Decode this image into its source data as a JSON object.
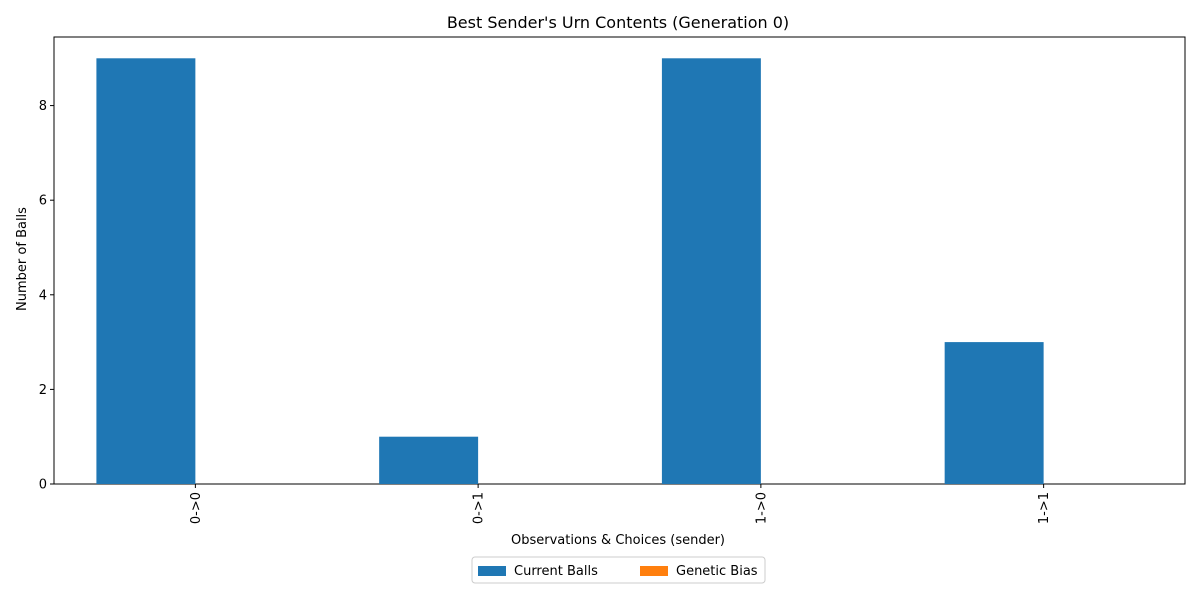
{
  "chart_data": {
    "type": "bar",
    "title": "Best Sender's Urn Contents (Generation 0)",
    "xlabel": "Observations & Choices (sender)",
    "ylabel": "Number of Balls",
    "categories": [
      "0->0",
      "0->1",
      "1->0",
      "1->1"
    ],
    "series": [
      {
        "name": "Current Balls",
        "values": [
          9,
          1,
          9,
          3
        ],
        "color": "#1f77b4"
      },
      {
        "name": "Genetic Bias",
        "values": [
          0,
          0,
          0,
          0
        ],
        "color": "#ff7f0e"
      }
    ],
    "ylim": [
      0,
      9.45
    ],
    "yticks": [
      0,
      2,
      4,
      6,
      8
    ],
    "grid": false,
    "legend_position": "bottom-center",
    "x_tick_rotation": "vertical"
  }
}
